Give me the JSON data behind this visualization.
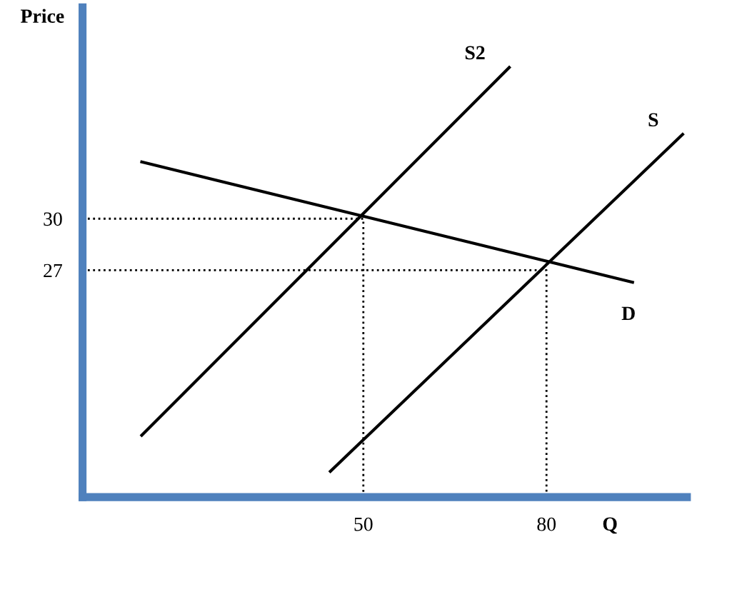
{
  "chart_data": {
    "type": "line",
    "xlabel": "Q",
    "ylabel": "Price",
    "xlim": [
      4,
      103
    ],
    "ylim": [
      13.8,
      42.3
    ],
    "xticks": [
      50,
      80
    ],
    "yticks": [
      27,
      30
    ],
    "grid": false,
    "legend": false,
    "marker": "none",
    "series": [
      {
        "name": "D",
        "color": "#000000",
        "x": [
          13.7,
          94.1
        ],
        "values": [
          33.3,
          26.3
        ],
        "line_style": "solid"
      },
      {
        "name": "S2",
        "color": "#000000",
        "x": [
          13.7,
          73.9
        ],
        "values": [
          17.4,
          38.8
        ],
        "line_style": "solid"
      },
      {
        "name": "S",
        "color": "#000000",
        "x": [
          44.6,
          102.3
        ],
        "values": [
          15.3,
          34.9
        ],
        "line_style": "solid"
      },
      {
        "color": "#000000",
        "x": [
          4,
          50,
          50
        ],
        "values": [
          30,
          30,
          13.8
        ],
        "line_style": "dotted"
      },
      {
        "color": "#000000",
        "x": [
          4,
          80,
          80
        ],
        "values": [
          27,
          27,
          13.8
        ],
        "line_style": "dotted"
      }
    ]
  }
}
